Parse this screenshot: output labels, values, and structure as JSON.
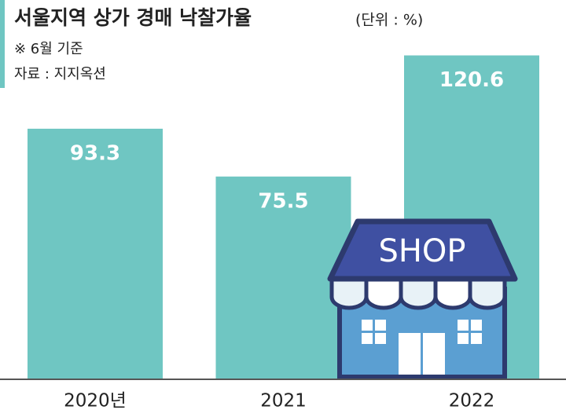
{
  "chart_data": {
    "type": "bar",
    "title": "서울지역 상가 경매 낙찰가율",
    "unit": "(단위 : %)",
    "notes": [
      "※ 6월 기준",
      "자료 : 지지옥션"
    ],
    "categories": [
      "2020년",
      "2021",
      "2022"
    ],
    "values": [
      93.3,
      75.5,
      120.6
    ],
    "color": "#6fc6c2",
    "annotation": "SHOP"
  }
}
